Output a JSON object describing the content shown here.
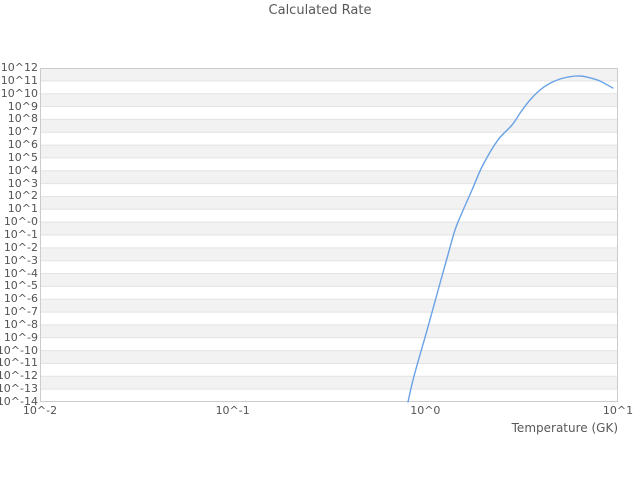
{
  "title": "Calculated Rate",
  "colors": {
    "background": "#ffffff",
    "band": "#f2f2f2",
    "grid": "#e3e3e3",
    "border": "#cccccc",
    "text": "#595959",
    "curve": "#69a2e6"
  },
  "chart_data": {
    "type": "line",
    "title": "Calculated Rate",
    "xlabel": "Temperature (GK)",
    "ylabel": "",
    "x_scale": "log",
    "y_scale": "log",
    "xlim_log": [
      -2,
      1
    ],
    "ylim_log": [
      -14,
      12
    ],
    "grid": "horizontal-bands-alternating",
    "legend": "none",
    "x_tick_labels": [
      "10^-2",
      "10^-1",
      "10^0",
      "10^1"
    ],
    "x_tick_log_values": [
      -2,
      -1,
      0,
      1
    ],
    "y_tick_labels": [
      "10^12",
      "10^11",
      "10^10",
      "10^9",
      "10^8",
      "10^7",
      "10^6",
      "10^5",
      "10^4",
      "10^3",
      "10^2",
      "10^1",
      "10^-0",
      "10^-1",
      "10^-2",
      "10^-3",
      "10^-4",
      "10^-5",
      "10^-6",
      "10^-7",
      "10^-8",
      "10^-9",
      "10^-10",
      "10^-11",
      "10^-12",
      "10^-13",
      "10^-14"
    ],
    "y_tick_log_values": [
      12,
      11,
      10,
      9,
      8,
      7,
      6,
      5,
      4,
      3,
      2,
      1,
      0,
      -1,
      -2,
      -3,
      -4,
      -5,
      -6,
      -7,
      -8,
      -9,
      -10,
      -11,
      -12,
      -13,
      -14
    ],
    "series": [
      {
        "name": "calculated-rate",
        "color": "#69a2e6",
        "log_points": [
          [
            -0.09,
            -14.0
          ],
          [
            -0.064,
            -12.29
          ],
          [
            -0.028,
            -10.34
          ],
          [
            0.009,
            -8.4
          ],
          [
            0.045,
            -6.45
          ],
          [
            0.081,
            -4.5
          ],
          [
            0.117,
            -2.56
          ],
          [
            0.154,
            -0.61
          ],
          [
            0.185,
            0.56
          ],
          [
            0.242,
            2.5
          ],
          [
            0.299,
            4.45
          ],
          [
            0.377,
            6.4
          ],
          [
            0.45,
            7.56
          ],
          [
            0.496,
            8.58
          ],
          [
            0.543,
            9.51
          ],
          [
            0.595,
            10.29
          ],
          [
            0.647,
            10.81
          ],
          [
            0.699,
            11.14
          ],
          [
            0.751,
            11.32
          ],
          [
            0.802,
            11.38
          ],
          [
            0.854,
            11.24
          ],
          [
            0.906,
            10.99
          ],
          [
            0.973,
            10.44
          ]
        ]
      }
    ]
  }
}
